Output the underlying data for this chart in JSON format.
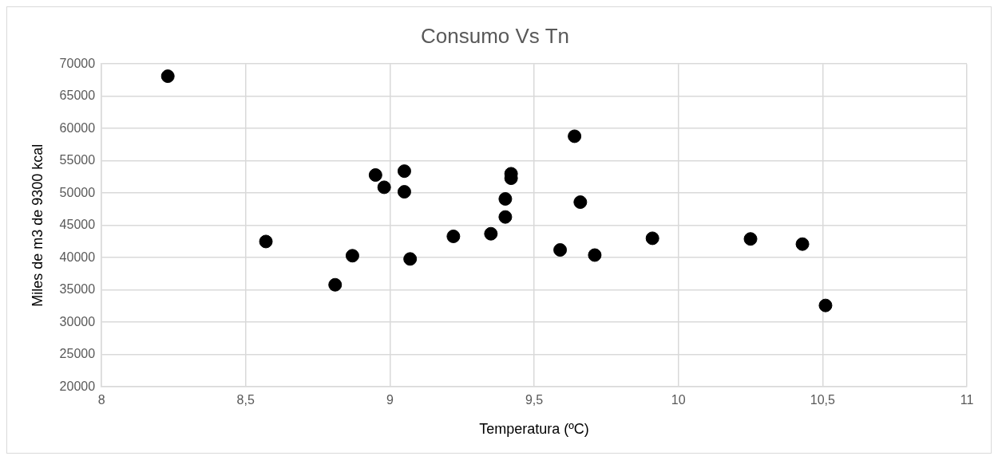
{
  "chart_data": {
    "type": "scatter",
    "title": "Consumo Vs Tn",
    "xlabel": "Temperatura (ºC)",
    "ylabel": "Miles de m3 de 9300 kcal",
    "x": [
      8.23,
      8.57,
      8.95,
      8.98,
      9.05,
      9.05,
      8.87,
      8.81,
      9.07,
      9.22,
      9.35,
      9.4,
      9.4,
      9.42,
      9.42,
      9.64,
      9.66,
      9.59,
      9.71,
      9.91,
      10.25,
      10.43,
      10.51
    ],
    "values": [
      68100,
      42500,
      52800,
      50900,
      53400,
      50200,
      40300,
      35800,
      39800,
      43300,
      43700,
      49100,
      46300,
      53000,
      52300,
      58800,
      48600,
      41200,
      40400,
      43000,
      42900,
      42100,
      32600
    ],
    "color": "#000000",
    "marker": "circle",
    "grid": true,
    "legend": false,
    "xlim": [
      8,
      11
    ],
    "xticks": [
      8,
      {
        "value": 8.5,
        "label": "8,5"
      },
      9,
      {
        "value": 9.5,
        "label": "9,5"
      },
      10,
      {
        "value": 10.5,
        "label": "10,5"
      },
      11
    ],
    "ylim": [
      20000,
      70000
    ],
    "yticks": [
      20000,
      25000,
      30000,
      35000,
      40000,
      45000,
      50000,
      55000,
      60000,
      65000,
      70000
    ]
  }
}
